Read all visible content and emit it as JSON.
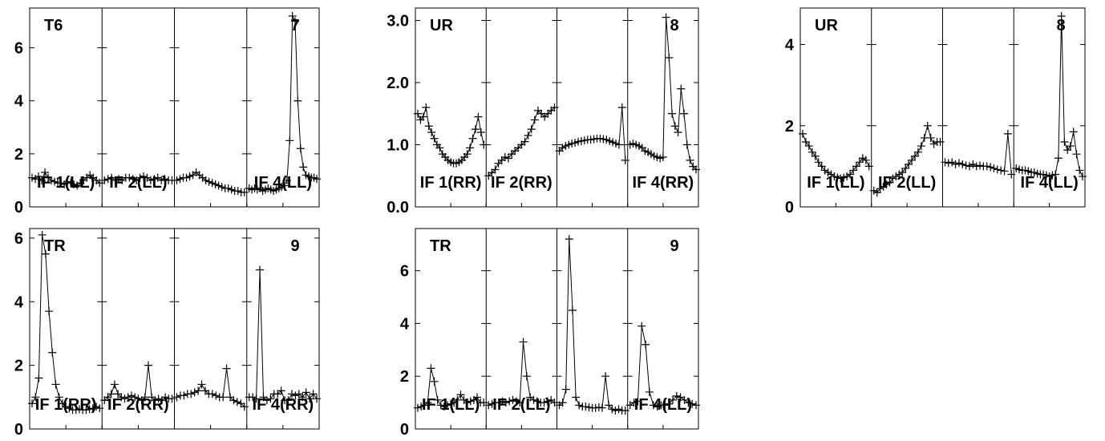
{
  "chart_data": {
    "type": "line",
    "marker": "plus",
    "line_color": "#000000",
    "panels": [
      {
        "station": "T6",
        "baseline": "7",
        "ylim": [
          0,
          7.5
        ],
        "yticks": [
          {
            "v": 0,
            "label": "0"
          },
          {
            "v": 2,
            "label": "2"
          },
          {
            "v": 4,
            "label": "4"
          },
          {
            "v": 6,
            "label": "6"
          }
        ],
        "if_labels": [
          "IF 1(LL)",
          "IF 2(LL)",
          "",
          "IF 4(LL)"
        ],
        "series": [
          [
            1.1,
            1.05,
            1.15,
            1.0,
            1.3,
            1.1,
            1.0,
            0.95,
            0.9,
            0.9,
            0.85,
            0.95,
            0.9,
            0.85,
            0.8,
            0.9,
            1.0,
            1.1,
            1.2,
            1.1,
            1.0,
            0.9
          ],
          [
            1.0,
            1.05,
            1.1,
            1.0,
            1.05,
            1.0,
            1.1,
            1.1,
            1.05,
            1.0,
            1.1,
            1.15,
            1.1,
            1.0,
            1.05,
            1.1,
            1.0,
            1.05,
            1.0,
            1.0
          ],
          [
            1.0,
            1.05,
            1.1,
            1.1,
            1.15,
            1.2,
            1.3,
            1.2,
            1.1,
            1.0,
            0.95,
            0.9,
            0.85,
            0.8,
            0.75,
            0.7,
            0.7,
            0.65,
            0.6,
            0.6,
            0.55,
            0.55
          ],
          [
            0.7,
            0.65,
            0.7,
            0.65,
            0.7,
            0.6,
            0.65,
            0.7,
            0.65,
            0.6,
            0.65,
            0.7,
            0.75,
            0.8,
            1.0,
            2.5,
            7.2,
            7.0,
            4.0,
            2.2,
            1.5,
            1.2,
            1.15,
            1.1,
            1.1,
            1.05
          ]
        ]
      },
      {
        "station": "UR",
        "baseline": "8",
        "ylim": [
          0,
          3.2
        ],
        "yticks": [
          {
            "v": 0,
            "label": "0.0"
          },
          {
            "v": 1,
            "label": "1.0"
          },
          {
            "v": 2,
            "label": "2.0"
          },
          {
            "v": 3,
            "label": "3.0"
          }
        ],
        "if_labels": [
          "IF 1(RR)",
          "IF 2(RR)",
          "",
          "IF 4(RR)"
        ],
        "series": [
          [
            1.5,
            1.4,
            1.45,
            1.6,
            1.3,
            1.2,
            1.1,
            1.0,
            0.95,
            0.85,
            0.8,
            0.75,
            0.72,
            0.7,
            0.7,
            0.72,
            0.75,
            0.8,
            0.85,
            0.95,
            1.1,
            1.25,
            1.45,
            1.2,
            1.0
          ],
          [
            0.5,
            0.55,
            0.6,
            0.7,
            0.75,
            0.8,
            0.78,
            0.85,
            0.9,
            0.95,
            1.0,
            1.05,
            1.15,
            1.25,
            1.4,
            1.55,
            1.5,
            1.45,
            1.5,
            1.55,
            1.6
          ],
          [
            0.9,
            0.95,
            0.98,
            1.0,
            1.02,
            1.03,
            1.05,
            1.06,
            1.07,
            1.08,
            1.08,
            1.09,
            1.1,
            1.1,
            1.09,
            1.08,
            1.06,
            1.04,
            1.02,
            1.0,
            1.6,
            0.75
          ],
          [
            1.0,
            1.02,
            1.0,
            0.98,
            0.95,
            0.9,
            0.88,
            0.85,
            0.82,
            0.8,
            0.78,
            0.8,
            3.05,
            2.4,
            1.5,
            1.3,
            1.2,
            1.9,
            1.5,
            1.0,
            0.75,
            0.65,
            0.6
          ]
        ]
      },
      {
        "station": "UR",
        "baseline": "8",
        "ylim": [
          0,
          4.9
        ],
        "yticks": [
          {
            "v": 0,
            "label": "0"
          },
          {
            "v": 2,
            "label": "2"
          },
          {
            "v": 4,
            "label": "4"
          }
        ],
        "if_labels": [
          "IF 1(LL)",
          "IF 2(LL)",
          "",
          "IF 4(LL)"
        ],
        "series": [
          [
            1.8,
            1.6,
            1.5,
            1.35,
            1.25,
            1.1,
            1.0,
            0.9,
            0.85,
            0.8,
            0.75,
            0.72,
            0.7,
            0.72,
            0.75,
            0.8,
            0.9,
            1.0,
            1.1,
            1.2,
            1.15,
            1.0
          ],
          [
            0.4,
            0.35,
            0.45,
            0.5,
            0.55,
            0.6,
            0.7,
            0.75,
            0.8,
            0.85,
            0.95,
            1.05,
            1.15,
            1.25,
            1.35,
            1.5,
            1.7,
            2.0,
            1.7,
            1.55,
            1.6,
            1.6
          ],
          [
            1.1,
            1.08,
            1.1,
            1.05,
            1.08,
            1.05,
            1.02,
            1.0,
            1.05,
            1.0,
            1.02,
            1.0,
            1.0,
            0.98,
            0.95,
            0.92,
            0.9,
            0.88,
            1.8,
            0.8
          ],
          [
            0.95,
            0.92,
            0.9,
            0.9,
            0.88,
            0.85,
            0.85,
            0.82,
            0.8,
            0.8,
            0.78,
            0.75,
            0.78,
            0.8,
            1.2,
            4.7,
            1.6,
            1.4,
            1.5,
            1.85,
            1.3,
            0.9,
            0.75
          ]
        ]
      },
      {
        "station": "TR",
        "baseline": "9",
        "ylim": [
          0,
          6.3
        ],
        "yticks": [
          {
            "v": 0,
            "label": "0"
          },
          {
            "v": 2,
            "label": "2"
          },
          {
            "v": 4,
            "label": "4"
          },
          {
            "v": 6,
            "label": "6"
          }
        ],
        "if_labels": [
          "IF 1(RR)",
          "IF 2(RR)",
          "",
          "IF 4(RR)"
        ],
        "series": [
          [
            0.8,
            1.0,
            1.6,
            6.1,
            5.5,
            3.7,
            2.4,
            1.4,
            1.0,
            0.8,
            0.7,
            0.65,
            0.6,
            0.6,
            0.62,
            0.6,
            0.6,
            0.62,
            0.65,
            0.7,
            0.65
          ],
          [
            0.9,
            1.0,
            1.1,
            1.4,
            1.1,
            1.0,
            0.95,
            1.0,
            1.05,
            1.0,
            0.95,
            0.9,
            1.0,
            2.0,
            1.0,
            0.9,
            0.95,
            0.9,
            1.0,
            0.95,
            0.95
          ],
          [
            1.0,
            1.05,
            1.05,
            1.1,
            1.1,
            1.15,
            1.2,
            1.4,
            1.2,
            1.1,
            1.1,
            1.05,
            1.0,
            1.0,
            1.9,
            1.0,
            0.9,
            0.85,
            0.8,
            0.7
          ],
          [
            1.0,
            1.0,
            0.95,
            5.0,
            1.0,
            0.9,
            0.95,
            1.1,
            1.1,
            1.2,
            0.9,
            0.9,
            1.1,
            1.05,
            1.1,
            1.0,
            1.15,
            0.95,
            1.1,
            0.95
          ]
        ]
      },
      {
        "station": "TR",
        "baseline": "9",
        "ylim": [
          0,
          7.6
        ],
        "yticks": [
          {
            "v": 0,
            "label": "0"
          },
          {
            "v": 2,
            "label": "2"
          },
          {
            "v": 4,
            "label": "4"
          },
          {
            "v": 6,
            "label": "6"
          }
        ],
        "if_labels": [
          "IF 1(LL)",
          "IF 2(LL)",
          "",
          "IF 4(LL)"
        ],
        "series": [
          [
            0.8,
            0.85,
            0.9,
            1.0,
            2.3,
            1.8,
            1.1,
            0.9,
            0.85,
            0.9,
            0.95,
            1.0,
            1.1,
            1.3,
            1.1,
            1.0,
            1.05,
            1.1,
            1.2,
            1.0,
            1.0
          ],
          [
            0.9,
            0.95,
            1.0,
            1.0,
            1.05,
            1.0,
            1.05,
            1.1,
            1.05,
            1.0,
            3.3,
            2.0,
            1.2,
            1.1,
            1.05,
            1.0,
            1.0,
            1.05,
            1.1,
            1.0
          ],
          [
            0.9,
            1.0,
            1.5,
            7.2,
            4.5,
            1.2,
            0.9,
            0.85,
            0.85,
            0.82,
            0.8,
            0.8,
            0.82,
            0.8,
            2.0,
            0.9,
            0.75,
            0.7,
            0.75,
            0.7,
            0.7
          ],
          [
            0.9,
            1.0,
            1.05,
            3.9,
            3.2,
            1.4,
            0.9,
            0.85,
            0.9,
            0.9,
            0.95,
            1.1,
            1.25,
            1.2,
            1.1,
            1.0,
            0.95,
            0.9
          ]
        ]
      }
    ]
  }
}
